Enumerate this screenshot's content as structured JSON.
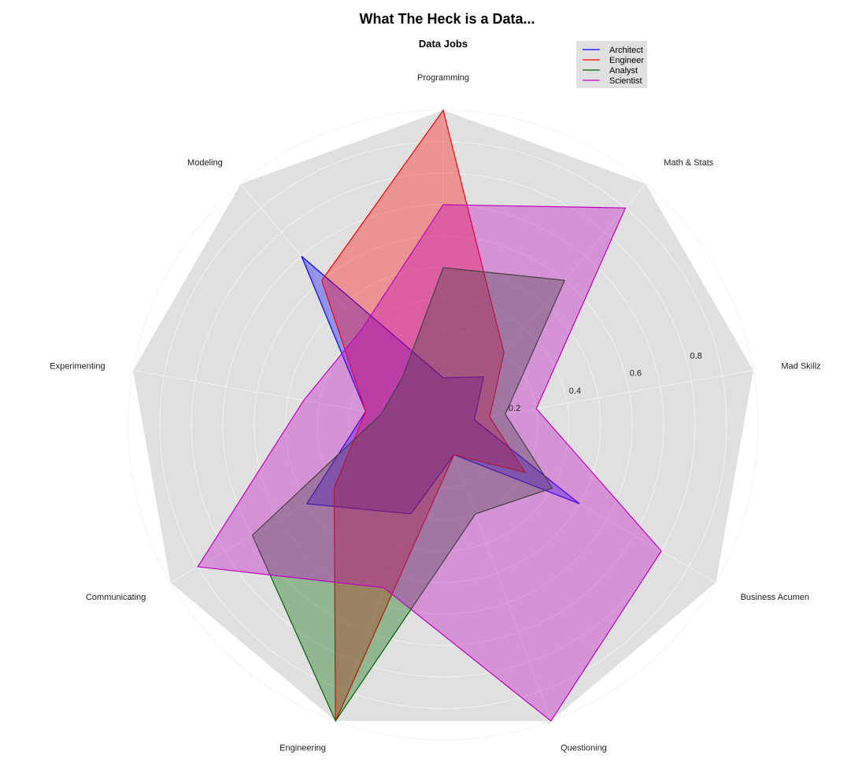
{
  "chart_data": {
    "type": "radar",
    "title": "What The Heck is a Data...",
    "subtitle": "Data Jobs",
    "axes": [
      "Programming",
      "Math & Stats",
      "Mad Skillz",
      "Business Acumen",
      "Questioning",
      "Engineering",
      "Communicating",
      "Experimenting",
      "Modeling"
    ],
    "rlim": [
      0,
      1
    ],
    "ticks": [
      0.2,
      0.4,
      0.6,
      0.8
    ],
    "tick_labels": [
      "0.2",
      "0.4",
      "0.6",
      "0.8"
    ],
    "grid": true,
    "legend_position": "top-right",
    "series": [
      {
        "name": "Architect",
        "color": "#0000ff",
        "values": [
          0.15,
          0.2,
          0.1,
          0.5,
          0.1,
          0.3,
          0.5,
          0.25,
          0.7
        ]
      },
      {
        "name": "Engineer",
        "color": "#ff0000",
        "values": [
          1.0,
          0.3,
          0.15,
          0.3,
          0.1,
          1.0,
          0.4,
          0.25,
          0.6
        ]
      },
      {
        "name": "Analyst",
        "color": "#006400",
        "values": [
          0.5,
          0.6,
          0.2,
          0.4,
          0.3,
          1.0,
          0.7,
          0.2,
          0.2
        ]
      },
      {
        "name": "Scientist",
        "color": "#bf00bf",
        "values": [
          0.7,
          0.9,
          0.3,
          0.8,
          1.0,
          0.55,
          0.9,
          0.45,
          0.4
        ]
      }
    ]
  }
}
